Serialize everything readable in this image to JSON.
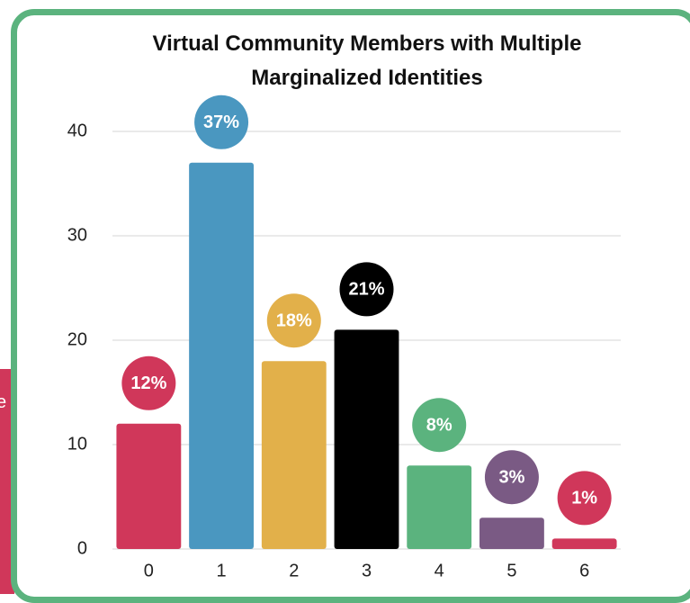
{
  "side_text": "e",
  "chart_data": {
    "type": "bar",
    "title": "Virtual Community Members with Multiple Marginalized Identities",
    "categories": [
      "0",
      "1",
      "2",
      "3",
      "4",
      "5",
      "6"
    ],
    "values": [
      12,
      37,
      18,
      21,
      8,
      3,
      1
    ],
    "value_labels": [
      "12%",
      "37%",
      "18%",
      "21%",
      "8%",
      "3%",
      "1%"
    ],
    "colors": [
      "#d0375a",
      "#4a97c0",
      "#e2b04a",
      "#000000",
      "#5bb37e",
      "#7a5a84",
      "#d0375a"
    ],
    "ylim": [
      0,
      40
    ],
    "yticks": [
      0,
      10,
      20,
      30,
      40
    ],
    "grid": true
  }
}
